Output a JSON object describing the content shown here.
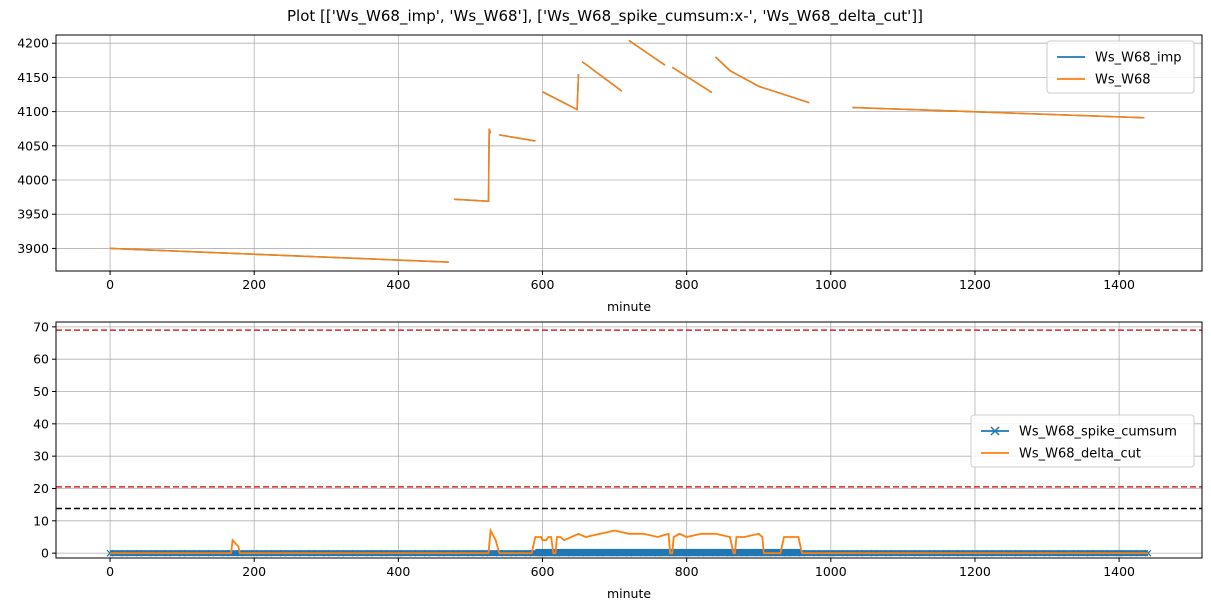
{
  "figure": {
    "title": "Plot [['Ws_W68_imp', 'Ws_W68'], ['Ws_W68_spike_cumsum:x-', 'Ws_W68_delta_cut']]"
  },
  "chart_data": [
    {
      "type": "line",
      "xlabel": "minute",
      "ylabel": "",
      "xlim": [
        -75,
        1515
      ],
      "ylim": [
        3867,
        4212
      ],
      "xticks": [
        0,
        200,
        400,
        600,
        800,
        1000,
        1200,
        1400
      ],
      "yticks": [
        3900,
        3950,
        4000,
        4050,
        4100,
        4150,
        4200
      ],
      "grid": true,
      "legend": "top-right",
      "series": [
        {
          "name": "Ws_W68_imp",
          "color": "#1f77b4",
          "segments": [
            [
              [
                0,
                3900
              ],
              [
                470,
                3880
              ]
            ],
            [
              [
                477,
                3972
              ],
              [
                525,
                3969
              ],
              [
                526,
                4075
              ],
              [
                528,
                4068
              ]
            ],
            [
              [
                540,
                4066
              ],
              [
                590,
                4057
              ]
            ],
            [
              [
                600,
                4129
              ],
              [
                648,
                4103
              ],
              [
                650,
                4155
              ]
            ],
            [
              [
                655,
                4173
              ],
              [
                710,
                4130
              ]
            ],
            [
              [
                720,
                4204
              ],
              [
                770,
                4168
              ]
            ],
            [
              [
                780,
                4165
              ],
              [
                835,
                4128
              ]
            ],
            [
              [
                840,
                4180
              ],
              [
                860,
                4160
              ],
              [
                900,
                4137
              ],
              [
                970,
                4113
              ]
            ],
            [
              [
                1030,
                4106
              ],
              [
                1435,
                4091
              ]
            ]
          ]
        },
        {
          "name": "Ws_W68",
          "color": "#ff7f0e",
          "segments": [
            [
              [
                0,
                3900
              ],
              [
                470,
                3880
              ]
            ],
            [
              [
                477,
                3972
              ],
              [
                525,
                3969
              ],
              [
                526,
                4075
              ],
              [
                528,
                4068
              ]
            ],
            [
              [
                540,
                4066
              ],
              [
                590,
                4057
              ]
            ],
            [
              [
                600,
                4129
              ],
              [
                648,
                4103
              ],
              [
                650,
                4155
              ]
            ],
            [
              [
                655,
                4173
              ],
              [
                710,
                4130
              ]
            ],
            [
              [
                720,
                4204
              ],
              [
                770,
                4168
              ]
            ],
            [
              [
                780,
                4165
              ],
              [
                835,
                4128
              ]
            ],
            [
              [
                840,
                4180
              ],
              [
                860,
                4160
              ],
              [
                900,
                4137
              ],
              [
                970,
                4113
              ]
            ],
            [
              [
                1030,
                4106
              ],
              [
                1435,
                4091
              ]
            ]
          ]
        }
      ]
    },
    {
      "type": "line",
      "xlabel": "minute",
      "ylabel": "",
      "xlim": [
        -75,
        1515
      ],
      "ylim": [
        -1.5,
        71.5
      ],
      "xticks": [
        0,
        200,
        400,
        600,
        800,
        1000,
        1200,
        1400
      ],
      "yticks": [
        0,
        10,
        20,
        30,
        40,
        50,
        60,
        70
      ],
      "grid": true,
      "legend": "center-right",
      "hlines": [
        {
          "y": 69,
          "color": "#d62728"
        },
        {
          "y": 20.5,
          "color": "#d62728"
        },
        {
          "y": 13.8,
          "color": "#000000"
        }
      ],
      "series": [
        {
          "name": "Ws_W68_spike_cumsum",
          "color": "#1f77b4",
          "marker": "x",
          "x_range": [
            0,
            1440
          ],
          "values": [
            0,
            1
          ],
          "dense_band": [
            590,
            960
          ]
        },
        {
          "name": "Ws_W68_delta_cut",
          "color": "#ff7f0e",
          "x": [
            0,
            168,
            170,
            178,
            180,
            525,
            528,
            535,
            540,
            585,
            590,
            598,
            600,
            605,
            608,
            612,
            615,
            618,
            620,
            625,
            630,
            650,
            660,
            680,
            700,
            720,
            740,
            760,
            775,
            777,
            780,
            782,
            790,
            800,
            820,
            840,
            860,
            865,
            867,
            869,
            871,
            880,
            900,
            905,
            907,
            930,
            935,
            955,
            960,
            1440
          ],
          "values": [
            0,
            0,
            4,
            2,
            0,
            0,
            7,
            4,
            0,
            0,
            5,
            5,
            4,
            4,
            5,
            5,
            0,
            0,
            5,
            5,
            4,
            6,
            5,
            6,
            7,
            6,
            6,
            5,
            6,
            0,
            0,
            5,
            6,
            5,
            6,
            6,
            5,
            0,
            0,
            5,
            5,
            5,
            6,
            5,
            0,
            0,
            5,
            5,
            0,
            0
          ]
        }
      ]
    }
  ]
}
